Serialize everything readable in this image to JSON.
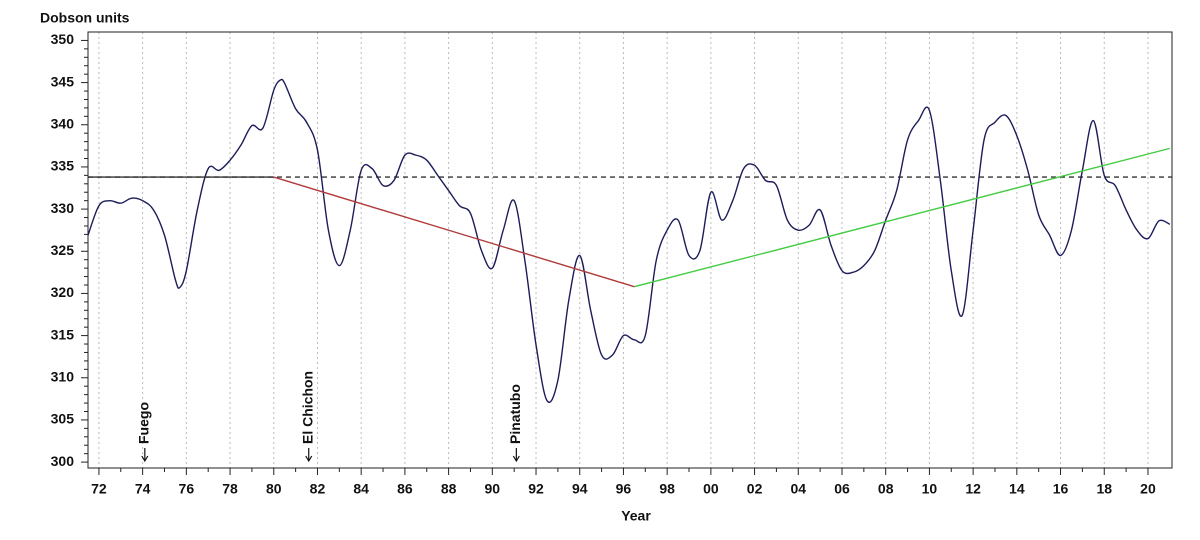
{
  "chart_data": {
    "type": "line",
    "ylabel": "Dobson units",
    "xlabel": "Year",
    "xlim": [
      1971.5,
      2021.1
    ],
    "ylim": [
      299.3,
      351
    ],
    "yticks": [
      300,
      305,
      310,
      315,
      320,
      325,
      330,
      335,
      340,
      345,
      350
    ],
    "xticks": [
      {
        "value": 1972,
        "label": "72"
      },
      {
        "value": 1974,
        "label": "74"
      },
      {
        "value": 1976,
        "label": "76"
      },
      {
        "value": 1978,
        "label": "78"
      },
      {
        "value": 1980,
        "label": "80"
      },
      {
        "value": 1982,
        "label": "82"
      },
      {
        "value": 1984,
        "label": "84"
      },
      {
        "value": 1986,
        "label": "86"
      },
      {
        "value": 1988,
        "label": "88"
      },
      {
        "value": 1990,
        "label": "90"
      },
      {
        "value": 1992,
        "label": "92"
      },
      {
        "value": 1994,
        "label": "94"
      },
      {
        "value": 1996,
        "label": "96"
      },
      {
        "value": 1998,
        "label": "98"
      },
      {
        "value": 2000,
        "label": "00"
      },
      {
        "value": 2002,
        "label": "02"
      },
      {
        "value": 2004,
        "label": "04"
      },
      {
        "value": 2006,
        "label": "06"
      },
      {
        "value": 2008,
        "label": "08"
      },
      {
        "value": 2010,
        "label": "10"
      },
      {
        "value": 2012,
        "label": "12"
      },
      {
        "value": 2014,
        "label": "14"
      },
      {
        "value": 2016,
        "label": "16"
      },
      {
        "value": 2018,
        "label": "18"
      },
      {
        "value": 2020,
        "label": "20"
      }
    ],
    "grid": "x",
    "reference": {
      "value": 333.8,
      "color": "#333333",
      "style": "dashed"
    },
    "series": [
      {
        "color": "#1c1c5a",
        "x": [
          1971.5,
          1972,
          1972.5,
          1973,
          1973.5,
          1974,
          1974.5,
          1975,
          1975.5,
          1975.7,
          1976,
          1976.5,
          1977,
          1977.5,
          1978,
          1978.5,
          1979,
          1979.5,
          1980,
          1980.3,
          1980.5,
          1981,
          1981.5,
          1982,
          1982.5,
          1983,
          1983.5,
          1984,
          1984.5,
          1985,
          1985.5,
          1986,
          1986.5,
          1987,
          1987.5,
          1988,
          1988.5,
          1989,
          1989.5,
          1990,
          1990.5,
          1991,
          1991.5,
          1992,
          1992.5,
          1993,
          1993.5,
          1994,
          1994.5,
          1995,
          1995.5,
          1996,
          1996.5,
          1997,
          1997.5,
          1998,
          1998.5,
          1999,
          1999.5,
          2000,
          2000.5,
          2001,
          2001.5,
          2002,
          2002.5,
          2003,
          2003.5,
          2004,
          2004.5,
          2005,
          2005.5,
          2006,
          2006.5,
          2007,
          2007.5,
          2008,
          2008.5,
          2009,
          2009.5,
          2010,
          2010.5,
          2011,
          2011.5,
          2012,
          2012.5,
          2013,
          2013.5,
          2014,
          2014.5,
          2015,
          2015.5,
          2016,
          2016.5,
          2017,
          2017.5,
          2018,
          2018.5,
          2019,
          2019.5,
          2020,
          2020.5,
          2021
        ],
        "values": [
          326.9,
          330.4,
          331,
          330.7,
          331.3,
          331,
          329.9,
          326.9,
          321.6,
          320.7,
          322.7,
          329.9,
          334.8,
          334.6,
          335.8,
          337.6,
          339.9,
          339.6,
          344.1,
          345.3,
          344.9,
          341.9,
          340.3,
          337,
          327.5,
          323.3,
          327.5,
          334.6,
          334.8,
          332.8,
          333.4,
          336.4,
          336.4,
          335.8,
          334,
          332.2,
          330.4,
          329.5,
          325.1,
          323,
          327.5,
          331,
          323.7,
          313.9,
          307.3,
          309.7,
          319.2,
          324.5,
          318,
          312.7,
          312.7,
          315,
          314.5,
          315,
          323.9,
          327.5,
          328.7,
          324.5,
          325.1,
          332,
          328.7,
          331,
          334.8,
          335.2,
          333.4,
          332.8,
          328.7,
          327.5,
          328.1,
          329.9,
          325.7,
          322.7,
          322.5,
          323.3,
          325.1,
          328.7,
          332.2,
          338.2,
          340.5,
          341.7,
          333.4,
          322.7,
          317.4,
          327.5,
          338.2,
          340.3,
          341.1,
          338.7,
          334.6,
          329.3,
          326.9,
          324.5,
          327.5,
          334.6,
          340.5,
          334,
          332.8,
          329.9,
          327.5,
          326.5,
          328.6,
          328.2
        ]
      },
      {
        "color": "#333333",
        "x": [
          1971.5,
          1980
        ],
        "values": [
          333.8,
          333.8
        ]
      },
      {
        "color": "#b03a3a",
        "x": [
          1980,
          1996.5
        ],
        "values": [
          333.8,
          320.8
        ]
      },
      {
        "color": "#44cc44",
        "x": [
          1996.5,
          2021
        ],
        "values": [
          320.8,
          337.2
        ]
      }
    ],
    "annotations": [
      {
        "text": "Fuego",
        "x": 1974.1
      },
      {
        "text": "El Chichon",
        "x": 1981.6
      },
      {
        "text": "Pinatubo",
        "x": 1991.1
      }
    ]
  }
}
